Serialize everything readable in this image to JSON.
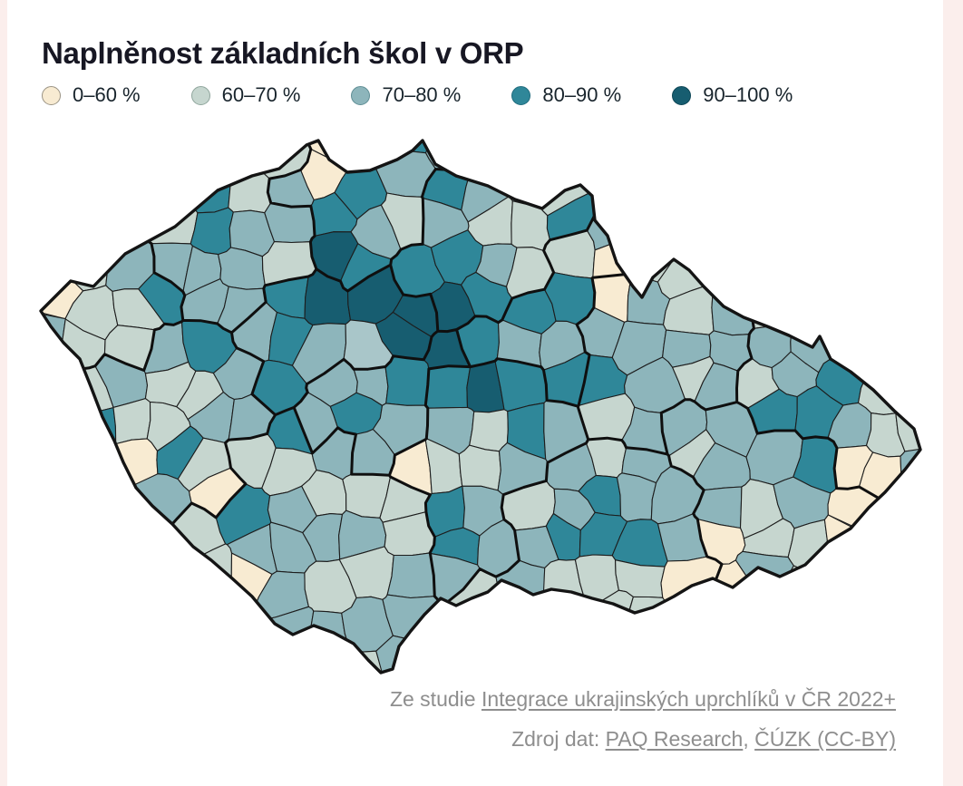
{
  "page": {
    "background_color": "#fbeeec",
    "card_color": "#ffffff"
  },
  "header": {
    "title": "Naplněnost základních škol v ORP",
    "title_color": "#171723"
  },
  "legend": {
    "items": [
      {
        "label": "0–60 %",
        "color": "#f8ebd2",
        "ring": "#9a9384"
      },
      {
        "label": "60–70 %",
        "color": "#c6d6cf",
        "ring": "#8fa59c"
      },
      {
        "label": "70–80 %",
        "color": "#8db5bb",
        "ring": "#5f8e95"
      },
      {
        "label": "80–90 %",
        "color": "#2f8799",
        "ring": "#1f6b7d"
      },
      {
        "label": "90–100 %",
        "color": "#175d70",
        "ring": "#0e4656"
      }
    ]
  },
  "map": {
    "outline_color": "#141414",
    "orp_border_color": "#1d1d1d",
    "kraj_border_color": "#0f0f0f",
    "prague_fill": "#a9c6c9"
  },
  "footer": {
    "text_color": "#8e8e8e",
    "line1_prefix": "Ze studie ",
    "line1_link": "Integrace ukrajinských uprchlíků v ČR 2022+",
    "line2_prefix": "Zdroj dat: ",
    "line2_link1": "PAQ Research",
    "line2_separator": ", ",
    "line2_link2": "ČÚZK (CC-BY)"
  }
}
